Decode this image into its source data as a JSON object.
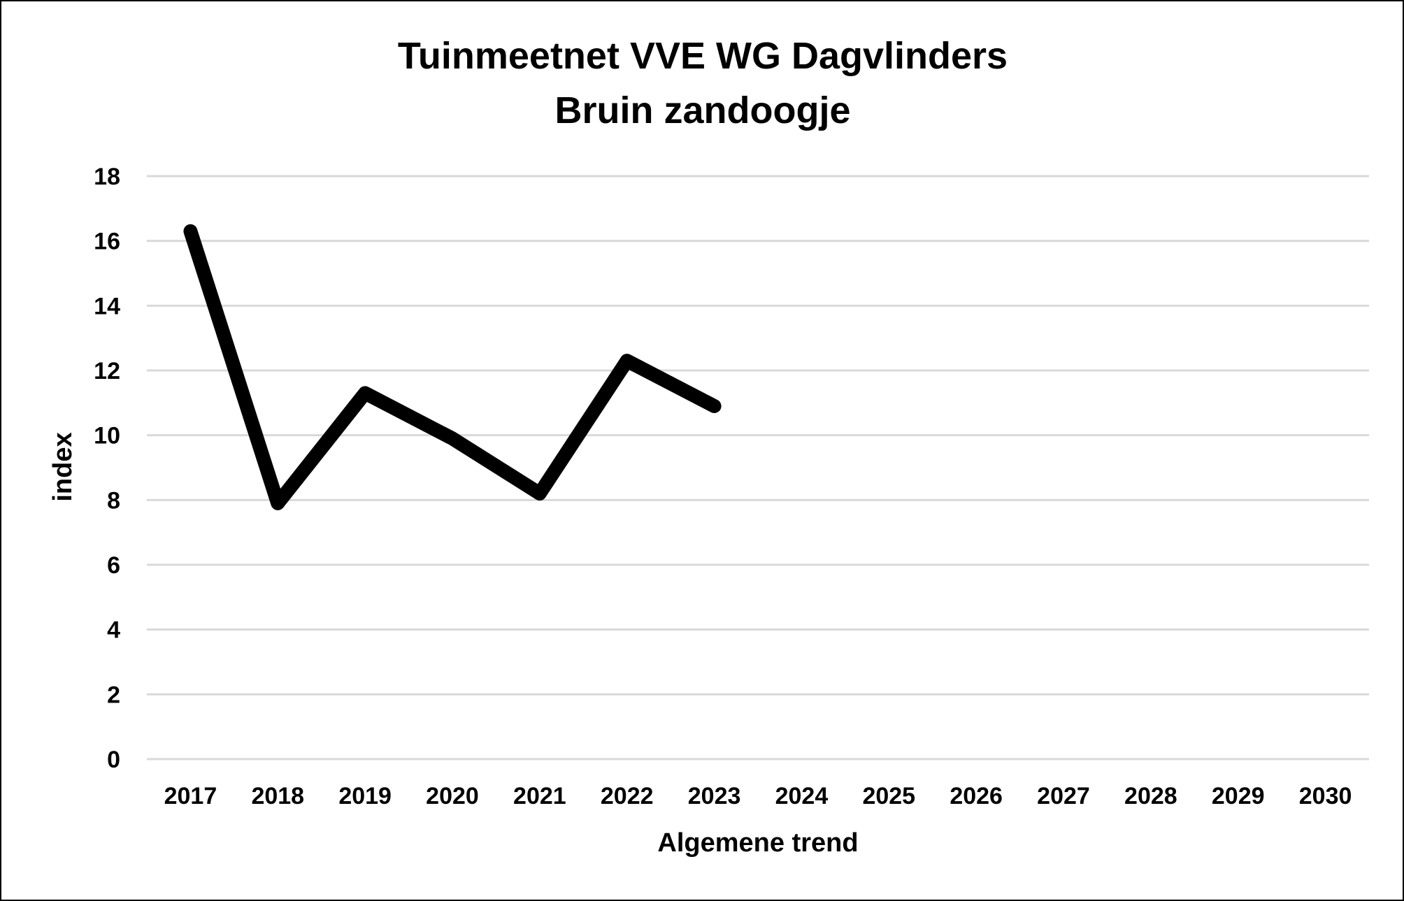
{
  "chart_data": {
    "type": "line",
    "title": "Tuinmeetnet VVE WG Dagvlinders",
    "subtitle": "Bruin zandoogje",
    "xlabel": "Algemene trend",
    "ylabel": "index",
    "categories": [
      "2017",
      "2018",
      "2019",
      "2020",
      "2021",
      "2022",
      "2023",
      "2024",
      "2025",
      "2026",
      "2027",
      "2028",
      "2029",
      "2030"
    ],
    "series": [
      {
        "values": [
          16.3,
          7.9,
          11.3,
          9.9,
          8.2,
          12.3,
          10.9,
          null,
          null,
          null,
          null,
          null,
          null,
          null
        ],
        "color": "#000000"
      }
    ],
    "ylim": [
      0,
      18
    ],
    "yticks": [
      "0",
      "2",
      "4",
      "6",
      "8",
      "10",
      "12",
      "14",
      "16",
      "18"
    ],
    "grid": true,
    "gridColor": "#d9d9d9",
    "legend": "none"
  }
}
